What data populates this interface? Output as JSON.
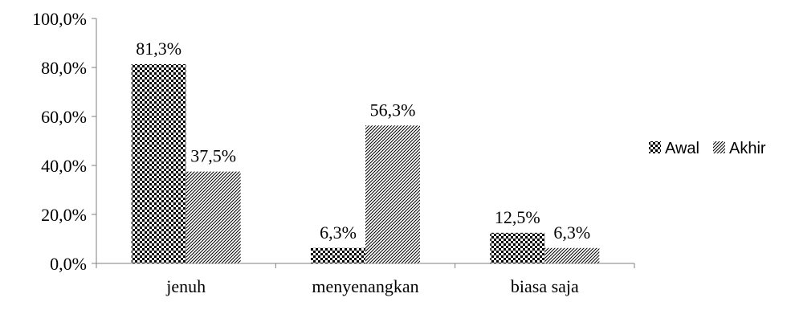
{
  "chart_data": {
    "type": "bar",
    "categories": [
      "jenuh",
      "menyenangkan",
      "biasa saja"
    ],
    "series": [
      {
        "name": "Awal",
        "values": [
          81.3,
          6.3,
          12.5
        ],
        "labels": [
          "81,3%",
          "6,3%",
          "12,5%"
        ],
        "pattern": "checker"
      },
      {
        "name": "Akhir",
        "values": [
          37.5,
          56.3,
          6.3
        ],
        "labels": [
          "37,5%",
          "56,3%",
          "6,3%"
        ],
        "pattern": "diagonal"
      }
    ],
    "yticks": [
      0,
      20,
      40,
      60,
      80,
      100
    ],
    "ytick_labels": [
      "0,0%",
      "20,0%",
      "40,0%",
      "60,0%",
      "80,0%",
      "100,0%"
    ],
    "ylim": [
      0,
      100
    ],
    "grid": false,
    "legend": "right"
  },
  "colors": {
    "bar": "#000000",
    "background": "#ffffff",
    "axis": "#7f7f7f"
  }
}
